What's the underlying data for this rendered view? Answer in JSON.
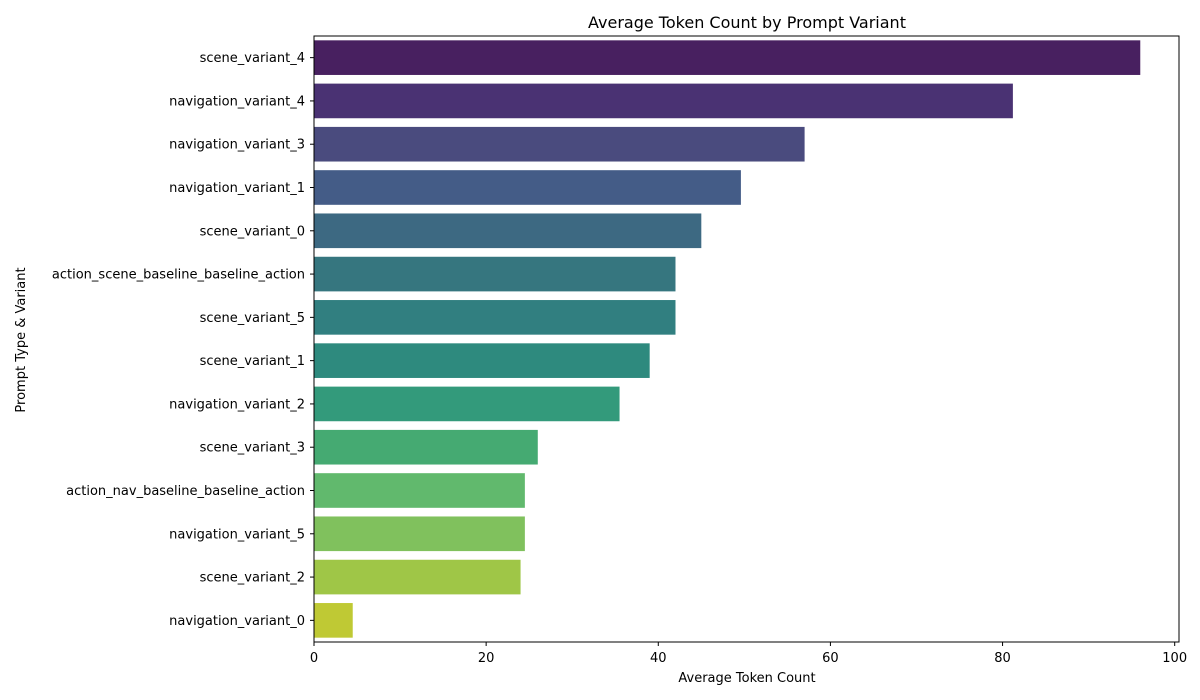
{
  "chart_data": {
    "type": "bar",
    "orientation": "horizontal",
    "title": "Average Token Count by Prompt Variant",
    "xlabel": "Average Token Count",
    "ylabel": "Prompt Type & Variant",
    "xlim": [
      0,
      100.5
    ],
    "xticks": [
      0,
      20,
      40,
      60,
      80,
      100
    ],
    "grid": false,
    "categories": [
      "scene_variant_4",
      "navigation_variant_4",
      "navigation_variant_3",
      "navigation_variant_1",
      "scene_variant_0",
      "action_scene_baseline_baseline_action",
      "scene_variant_5",
      "scene_variant_1",
      "navigation_variant_2",
      "scene_variant_3",
      "action_nav_baseline_baseline_action",
      "navigation_variant_5",
      "scene_variant_2",
      "navigation_variant_0"
    ],
    "values": [
      96,
      81.2,
      57,
      49.6,
      45,
      42,
      42,
      39,
      35.5,
      26,
      24.5,
      24.5,
      24,
      4.5
    ],
    "colors": [
      "#482060",
      "#4a3273",
      "#4a4b7e",
      "#445c87",
      "#3d6982",
      "#36767f",
      "#317f80",
      "#2e8a7e",
      "#339a7b",
      "#45aa72",
      "#61b96d",
      "#80c15d",
      "#9fc647",
      "#bfc934"
    ]
  }
}
